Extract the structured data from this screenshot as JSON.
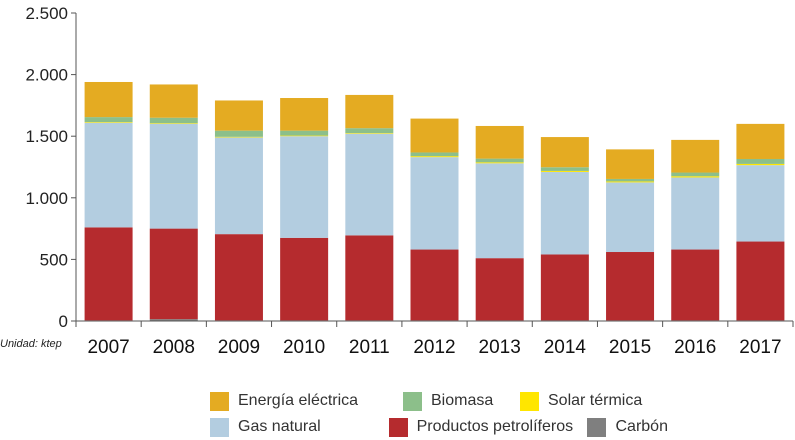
{
  "chart_data": {
    "type": "bar",
    "stacked": true,
    "title": "",
    "xlabel": "",
    "ylabel": "",
    "unit_label": "Unidad: ktep",
    "ylim": [
      0,
      2500
    ],
    "y_ticks": [
      0,
      500,
      1000,
      1500,
      2000,
      2500
    ],
    "y_tick_labels": [
      "0",
      "500",
      "1.000",
      "1.500",
      "2.000",
      "2.500"
    ],
    "categories": [
      "2007",
      "2008",
      "2009",
      "2010",
      "2011",
      "2012",
      "2013",
      "2014",
      "2015",
      "2016",
      "2017"
    ],
    "series": [
      {
        "name": "Carbón",
        "color": "#7f7f7f",
        "values": [
          5,
          15,
          5,
          5,
          5,
          5,
          5,
          5,
          5,
          5,
          5
        ]
      },
      {
        "name": "Productos petrolíferos",
        "color": "#b52b2e",
        "values": [
          755,
          735,
          700,
          670,
          690,
          575,
          505,
          535,
          555,
          575,
          640
        ]
      },
      {
        "name": "Gas natural",
        "color": "#b3cde0",
        "values": [
          850,
          850,
          785,
          825,
          825,
          750,
          770,
          670,
          565,
          585,
          620
        ]
      },
      {
        "name": "Solar térmica",
        "color": "#ffe600",
        "values": [
          5,
          5,
          5,
          5,
          5,
          8,
          8,
          8,
          8,
          10,
          10
        ]
      },
      {
        "name": "Biomasa",
        "color": "#8cbf8a",
        "values": [
          40,
          45,
          50,
          40,
          40,
          30,
          30,
          30,
          20,
          30,
          40
        ]
      },
      {
        "name": "Energía eléctrica",
        "color": "#e4ab22",
        "values": [
          285,
          270,
          245,
          265,
          270,
          275,
          265,
          245,
          240,
          265,
          285
        ]
      }
    ],
    "legend_position": "bottom",
    "legend": [
      [
        "Energía eléctrica",
        "Biomasa",
        "Solar térmica"
      ],
      [
        "Gas natural",
        "Productos petrolíferos",
        "Carbón"
      ]
    ],
    "grid": false
  }
}
